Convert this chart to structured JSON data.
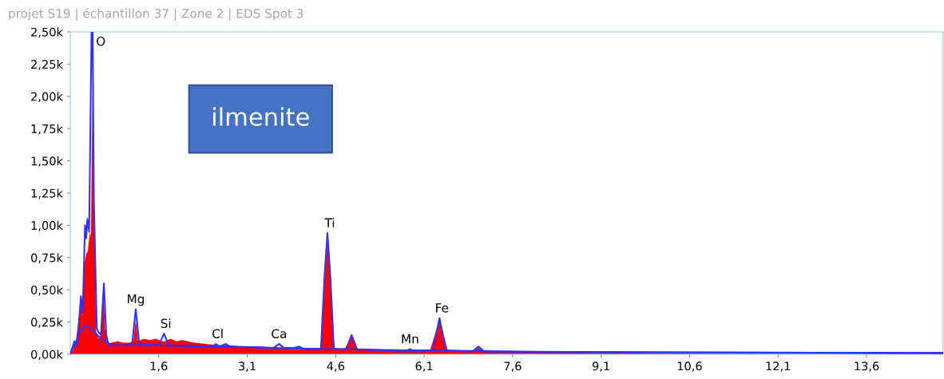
{
  "chart_data": {
    "type": "area",
    "title": "projet S19 | échantillon 37 | Zone 2 | EDS Spot 3",
    "xlim": [
      0.1,
      14.9
    ],
    "xticks": [
      {
        "value": 1.6,
        "label": "1,6"
      },
      {
        "value": 3.1,
        "label": "3,1"
      },
      {
        "value": 4.6,
        "label": "4,6"
      },
      {
        "value": 6.1,
        "label": "6,1"
      },
      {
        "value": 7.6,
        "label": "7,6"
      },
      {
        "value": 9.1,
        "label": "9,1"
      },
      {
        "value": 10.6,
        "label": "10,6"
      },
      {
        "value": 12.1,
        "label": "12,1"
      },
      {
        "value": 13.6,
        "label": "13,6"
      }
    ],
    "ylim": [
      0,
      2.5
    ],
    "yticks": [
      {
        "value": 0,
        "label": "0,00k"
      },
      {
        "value": 0.25,
        "label": "0,25k"
      },
      {
        "value": 0.5,
        "label": "0,50k"
      },
      {
        "value": 0.75,
        "label": "0,75k"
      },
      {
        "value": 1.0,
        "label": "1,00k"
      },
      {
        "value": 1.25,
        "label": "1,25k"
      },
      {
        "value": 1.5,
        "label": "1,50k"
      },
      {
        "value": 1.75,
        "label": "1,75k"
      },
      {
        "value": 2.0,
        "label": "2,00k"
      },
      {
        "value": 2.25,
        "label": "2,25k"
      },
      {
        "value": 2.5,
        "label": "2,50k"
      }
    ],
    "grid": false,
    "legend": false,
    "series": [
      {
        "color": "#ff0000",
        "x": [
          0.1,
          0.15,
          0.2,
          0.25,
          0.28,
          0.31,
          0.34,
          0.37,
          0.4,
          0.43,
          0.45,
          0.48,
          0.51,
          0.54,
          0.58,
          0.62,
          0.66,
          0.69,
          0.73,
          0.8,
          0.9,
          1.0,
          1.1,
          1.17,
          1.21,
          1.25,
          1.35,
          1.45,
          1.55,
          1.65,
          1.7,
          1.8,
          1.9,
          2.0,
          2.2,
          2.4,
          2.6,
          2.8,
          3.0,
          3.3,
          3.64,
          3.9,
          4.2,
          4.35,
          4.46,
          4.57,
          4.75,
          4.87,
          4.97,
          5.3,
          5.86,
          6.2,
          6.36,
          6.5,
          6.9,
          7.02,
          7.15,
          8.0,
          9.0,
          10.0,
          11.0,
          14.9
        ],
        "values": [
          0,
          0.03,
          0.12,
          0.3,
          0.42,
          0.3,
          0.7,
          0.78,
          0.8,
          0.95,
          0.9,
          2.15,
          0.9,
          0.17,
          0.12,
          0.15,
          0.52,
          0.2,
          0.08,
          0.09,
          0.1,
          0.09,
          0.09,
          0.1,
          0.27,
          0.1,
          0.12,
          0.11,
          0.12,
          0.1,
          0.1,
          0.12,
          0.1,
          0.11,
          0.09,
          0.08,
          0.07,
          0.07,
          0.06,
          0.06,
          0.05,
          0.04,
          0.04,
          0.05,
          0.93,
          0.05,
          0.04,
          0.14,
          0.04,
          0.03,
          0.03,
          0.03,
          0.27,
          0.03,
          0.03,
          0.05,
          0.02,
          0.02,
          0.02,
          0.01,
          0.005,
          0.005
        ]
      },
      {
        "type": "line",
        "color": "#3030ff",
        "x": [
          0.1,
          0.17,
          0.22,
          0.28,
          0.31,
          0.35,
          0.37,
          0.39,
          0.42,
          0.46,
          0.48,
          0.5,
          0.55,
          0.58,
          0.62,
          0.67,
          0.71,
          0.75,
          1.1,
          1.15,
          1.21,
          1.27,
          1.6,
          1.69,
          1.76,
          1.82,
          2.5,
          2.57,
          2.63,
          2.74,
          2.8,
          3.55,
          3.64,
          3.72,
          3.9,
          3.98,
          4.06,
          4.35,
          4.41,
          4.46,
          4.51,
          4.57,
          4.78,
          4.87,
          4.96,
          5.78,
          5.86,
          5.94,
          6.25,
          6.36,
          6.47,
          6.92,
          7.02,
          7.12,
          10.0,
          14.9
        ],
        "values": [
          0,
          0.1,
          0.07,
          0.45,
          0.32,
          1.0,
          0.9,
          1.05,
          0.95,
          2.5,
          2.5,
          1.2,
          0.2,
          0.17,
          0.15,
          0.55,
          0.15,
          0.07,
          0.07,
          0.08,
          0.35,
          0.08,
          0.07,
          0.16,
          0.08,
          0.07,
          0.06,
          0.08,
          0.06,
          0.08,
          0.06,
          0.05,
          0.08,
          0.05,
          0.05,
          0.06,
          0.04,
          0.04,
          0.6,
          0.94,
          0.6,
          0.04,
          0.04,
          0.15,
          0.04,
          0.02,
          0.04,
          0.02,
          0.03,
          0.28,
          0.03,
          0.02,
          0.06,
          0.02,
          0.015,
          0.01
        ]
      },
      {
        "type": "line",
        "color": "#3030ff",
        "x": [
          0.1,
          0.2,
          0.3,
          0.36,
          0.45,
          0.6,
          0.8,
          1.5,
          2.5,
          3.5,
          4.5,
          6.0,
          8.0,
          10.0,
          14.9
        ],
        "values": [
          0,
          0.1,
          0.2,
          0.22,
          0.2,
          0.13,
          0.07,
          0.07,
          0.06,
          0.05,
          0.04,
          0.03,
          0.02,
          0.015,
          0.01
        ]
      }
    ],
    "annotations": [
      {
        "text": "O",
        "x": 0.48,
        "y": 2.5
      },
      {
        "text": "Mg",
        "x": 1.21,
        "y": 0.35
      },
      {
        "text": "Si",
        "x": 1.72,
        "y": 0.16
      },
      {
        "text": "Cl",
        "x": 2.6,
        "y": 0.08
      },
      {
        "text": "Ca",
        "x": 3.64,
        "y": 0.08
      },
      {
        "text": "Ti",
        "x": 4.5,
        "y": 0.94
      },
      {
        "text": "Mn",
        "x": 5.86,
        "y": 0.04
      },
      {
        "text": "Fe",
        "x": 6.4,
        "y": 0.28
      },
      "ilmenite"
    ]
  }
}
